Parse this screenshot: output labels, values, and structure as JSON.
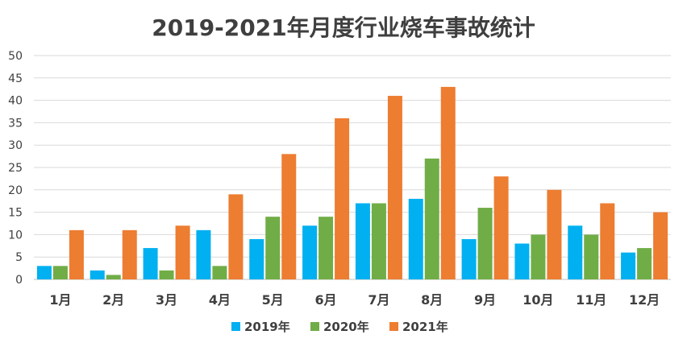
{
  "chart_data": {
    "type": "bar",
    "title": "2019-2021年月度行业烧车事故统计",
    "categories": [
      "1月",
      "2月",
      "3月",
      "4月",
      "5月",
      "6月",
      "7月",
      "8月",
      "9月",
      "10月",
      "11月",
      "12月"
    ],
    "series": [
      {
        "name": "2019年",
        "color": "#00b0f0",
        "values": [
          3,
          2,
          7,
          11,
          9,
          12,
          17,
          18,
          9,
          8,
          12,
          6
        ]
      },
      {
        "name": "2020年",
        "color": "#70ad47",
        "values": [
          3,
          1,
          2,
          3,
          14,
          14,
          17,
          27,
          16,
          10,
          10,
          7
        ]
      },
      {
        "name": "2021年",
        "color": "#ed7d31",
        "values": [
          11,
          11,
          12,
          19,
          28,
          36,
          41,
          43,
          23,
          20,
          17,
          15
        ]
      }
    ],
    "ylim": [
      0,
      50
    ],
    "yticks": [
      0,
      5,
      10,
      15,
      20,
      25,
      30,
      35,
      40,
      45,
      50
    ],
    "grid": true,
    "legend_position": "bottom"
  }
}
